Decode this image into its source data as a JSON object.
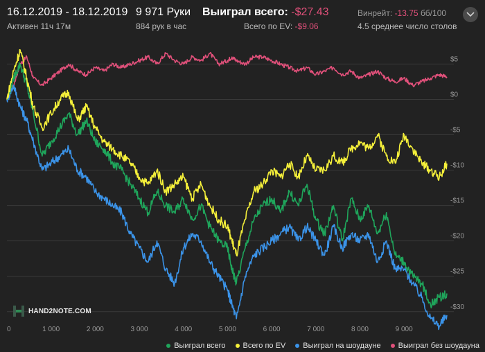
{
  "header": {
    "date_range": "16.12.2019 - 18.12.2019",
    "active": "Активен 11ч 17м",
    "hands": "9 971 Руки",
    "hands_per_hour": "884 рук в час",
    "won_total_label": "Выиграл всего:",
    "won_total_value": "-$27.43",
    "ev_label": "Всего по EV:",
    "ev_value": "-$9.06",
    "winrate_label": "Винрейт:",
    "winrate_value": "-13.75",
    "winrate_unit": "бб/100",
    "avg_tables": "4.5 среднее число столов"
  },
  "logo": {
    "text": "HAND2NOTE.COM"
  },
  "colors": {
    "background": "#222222",
    "grid": "#3a3a3a",
    "won": "#1fa55b",
    "ev": "#f5f03a",
    "showdown": "#3b93e8",
    "non_showdown": "#e0507a",
    "negative_text": "#e0507a"
  },
  "chart_data": {
    "type": "line",
    "xlim": [
      0,
      9971
    ],
    "ylim": [
      -31,
      7
    ],
    "x_ticks": [
      0,
      1000,
      2000,
      3000,
      4000,
      5000,
      6000,
      7000,
      8000,
      9000
    ],
    "x_tick_labels": [
      "0",
      "1 000",
      "2 000",
      "3 000",
      "4 000",
      "5 000",
      "6 000",
      "7 000",
      "8 000",
      "9 000"
    ],
    "y_ticks": [
      5,
      0,
      -5,
      -10,
      -15,
      -20,
      -25,
      -30
    ],
    "y_tick_labels": [
      "$5",
      "$0",
      "-$5",
      "-$10",
      "-$15",
      "-$20",
      "-$25",
      "-$30"
    ],
    "grid": true,
    "legend_position": "bottom-right",
    "series": [
      {
        "name": "Выиграл всего",
        "key": "won",
        "x": [
          0,
          150,
          300,
          450,
          600,
          800,
          1000,
          1200,
          1400,
          1600,
          1800,
          2000,
          2200,
          2400,
          2600,
          2800,
          3000,
          3200,
          3400,
          3600,
          3800,
          4000,
          4200,
          4400,
          4600,
          4800,
          5000,
          5100,
          5200,
          5400,
          5600,
          5800,
          6000,
          6200,
          6400,
          6600,
          6800,
          7000,
          7200,
          7400,
          7600,
          7800,
          8000,
          8200,
          8400,
          8600,
          8800,
          9000,
          9200,
          9400,
          9600,
          9800,
          9971
        ],
        "y": [
          0,
          3,
          5,
          2,
          -2,
          -8,
          -6,
          -4,
          -2,
          -5,
          -3,
          -6,
          -7,
          -9,
          -10,
          -12,
          -14,
          -16,
          -13,
          -15,
          -16,
          -14,
          -17,
          -15,
          -18,
          -20,
          -21,
          -24,
          -26,
          -21,
          -17,
          -15,
          -14,
          -16,
          -13,
          -15,
          -12,
          -17,
          -19,
          -15,
          -20,
          -14,
          -17,
          -15,
          -19,
          -16,
          -22,
          -23,
          -25,
          -26,
          -29,
          -28,
          -27.43
        ]
      },
      {
        "name": "Всего по EV",
        "key": "ev",
        "x": [
          0,
          150,
          300,
          450,
          600,
          800,
          1000,
          1200,
          1400,
          1600,
          1800,
          2000,
          2200,
          2400,
          2600,
          2800,
          3000,
          3200,
          3400,
          3600,
          3800,
          4000,
          4200,
          4400,
          4600,
          4800,
          5000,
          5100,
          5200,
          5400,
          5600,
          5800,
          6000,
          6200,
          6400,
          6600,
          6800,
          7000,
          7200,
          7400,
          7600,
          7800,
          8000,
          8200,
          8400,
          8600,
          8800,
          9000,
          9200,
          9400,
          9600,
          9800,
          9971
        ],
        "y": [
          0,
          4,
          7,
          3,
          -1,
          -4,
          -2,
          0,
          1,
          -3,
          -1,
          -4,
          -6,
          -7,
          -8,
          -9,
          -11,
          -12,
          -10,
          -13,
          -12,
          -11,
          -14,
          -12,
          -15,
          -17,
          -18,
          -20,
          -22,
          -17,
          -13,
          -12,
          -10,
          -11,
          -9,
          -11,
          -8,
          -10,
          -10,
          -8,
          -9,
          -7,
          -6,
          -7,
          -5,
          -8,
          -9,
          -5,
          -7,
          -9,
          -10,
          -11,
          -9.06
        ]
      },
      {
        "name": "Выиграл на шоудауне",
        "key": "showdown",
        "x": [
          0,
          150,
          300,
          450,
          600,
          800,
          1000,
          1200,
          1400,
          1600,
          1800,
          2000,
          2200,
          2400,
          2600,
          2800,
          3000,
          3200,
          3400,
          3600,
          3800,
          4000,
          4200,
          4400,
          4600,
          4800,
          5000,
          5100,
          5200,
          5400,
          5600,
          5800,
          6000,
          6200,
          6400,
          6600,
          6800,
          7000,
          7200,
          7400,
          7600,
          7800,
          8000,
          8200,
          8400,
          8600,
          8800,
          9000,
          9200,
          9400,
          9600,
          9800,
          9971
        ],
        "y": [
          0,
          2,
          -1,
          -3,
          -6,
          -10,
          -9,
          -8,
          -7,
          -10,
          -11,
          -13,
          -14,
          -15,
          -16,
          -19,
          -21,
          -23,
          -20,
          -24,
          -26,
          -21,
          -19,
          -20,
          -23,
          -25,
          -27,
          -29,
          -31,
          -25,
          -22,
          -21,
          -20,
          -19,
          -18,
          -20,
          -18,
          -20,
          -22,
          -18,
          -21,
          -19,
          -20,
          -19,
          -23,
          -20,
          -24,
          -24,
          -26,
          -28,
          -31,
          -32,
          -30.5
        ]
      },
      {
        "name": "Выиграл без шоудауна",
        "key": "non_showdown",
        "x": [
          0,
          150,
          300,
          450,
          600,
          800,
          1000,
          1200,
          1400,
          1600,
          1800,
          2000,
          2200,
          2400,
          2600,
          2800,
          3000,
          3200,
          3400,
          3600,
          3800,
          4000,
          4200,
          4400,
          4600,
          4800,
          5000,
          5100,
          5200,
          5400,
          5600,
          5800,
          6000,
          6200,
          6400,
          6600,
          6800,
          7000,
          7200,
          7400,
          7600,
          7800,
          8000,
          8200,
          8400,
          8600,
          8800,
          9000,
          9200,
          9400,
          9600,
          9800,
          9971
        ],
        "y": [
          0,
          2,
          5,
          6,
          3,
          2,
          3,
          4,
          5,
          4,
          3.5,
          4.5,
          4,
          5,
          4.5,
          5,
          5.5,
          6,
          5,
          6.5,
          5.5,
          5,
          6,
          5.5,
          6.5,
          5,
          5.5,
          6,
          5.5,
          5,
          6,
          6,
          5.5,
          5,
          4.5,
          4,
          4.5,
          3.5,
          4,
          4.5,
          3.5,
          4,
          3,
          3.5,
          4,
          3,
          2.5,
          3,
          2,
          2.5,
          3,
          3.5,
          3.2
        ]
      }
    ]
  },
  "legend": {
    "won": "Выиграл всего",
    "ev": "Всего по EV",
    "showdown": "Выиграл на шоудауне",
    "non_showdown": "Выиграл без шоудауна"
  }
}
